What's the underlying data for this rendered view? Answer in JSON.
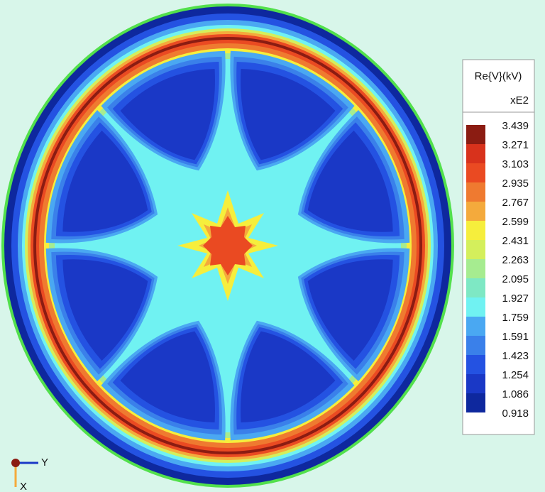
{
  "legend": {
    "title": "Re{V}(kV)",
    "subtitle": "xE2",
    "labels": [
      3.439,
      3.271,
      3.103,
      2.935,
      2.767,
      2.599,
      2.431,
      2.263,
      2.095,
      1.927,
      1.759,
      1.591,
      1.423,
      1.254,
      1.086,
      0.918
    ],
    "colors": [
      "#8b1c12",
      "#d8321c",
      "#ea4a22",
      "#ef7a30",
      "#f4aa3c",
      "#f6ee3c",
      "#d4ef5c",
      "#a6ec90",
      "#7ee8c4",
      "#70f2f2",
      "#4aa8f2",
      "#3a80ea",
      "#2452e2",
      "#1a38c6",
      "#0e289e"
    ]
  },
  "triad": {
    "y_label": "Y",
    "x_label": "X"
  }
}
